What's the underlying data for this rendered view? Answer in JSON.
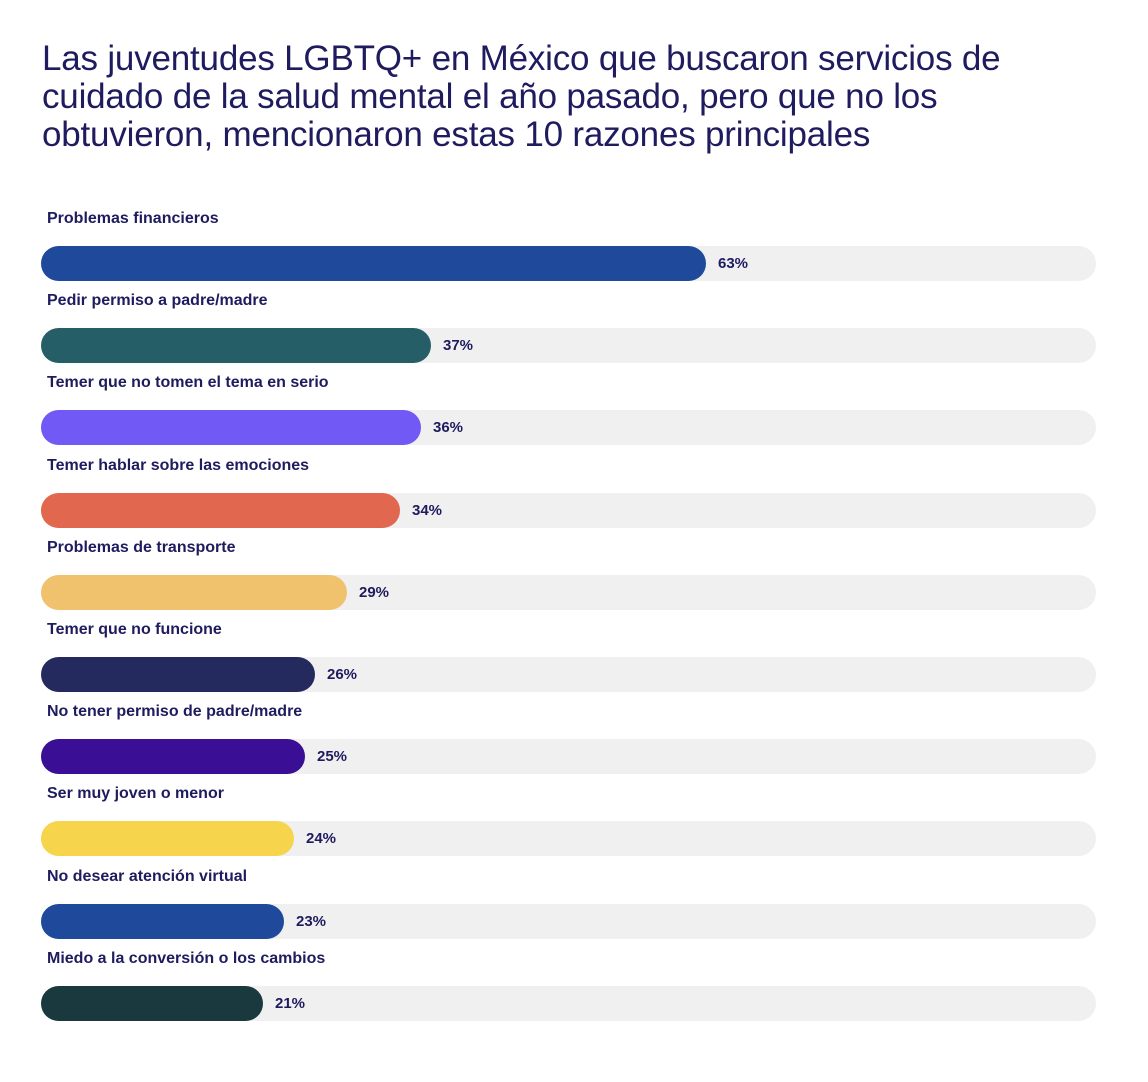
{
  "chart_data": {
    "type": "bar",
    "orientation": "horizontal",
    "title": "Las juventudes LGBTQ+ en México que buscaron servicios de cuidado de la salud mental el año pasado, pero que no los obtuvieron, mencionaron estas 10 razones principales",
    "xlabel": "",
    "ylabel": "",
    "xlim": [
      0,
      100
    ],
    "grid": false,
    "legend": "none",
    "unit": "%",
    "categories": [
      "Problemas financieros",
      "Pedir permiso a padre/madre",
      "Temer que no tomen el tema en serio",
      "Temer hablar sobre las emociones",
      "Problemas de transporte",
      "Temer que no funcione",
      "No tener permiso de padre/madre",
      "Ser muy joven o menor",
      "No desear atención virtual",
      "Miedo a la conversión o los cambios"
    ],
    "values": [
      63,
      37,
      36,
      34,
      29,
      26,
      25,
      24,
      23,
      21
    ],
    "value_labels": [
      "63%",
      "37%",
      "36%",
      "34%",
      "29%",
      "26%",
      "25%",
      "24%",
      "23%",
      "21%"
    ],
    "colors": [
      "#1f4a9b",
      "#265e68",
      "#7059f5",
      "#e1674e",
      "#f0c26d",
      "#242a5e",
      "#3a0f95",
      "#f6d44c",
      "#1f4a9b",
      "#19393f"
    ],
    "track_color": "#f0f0f0"
  }
}
